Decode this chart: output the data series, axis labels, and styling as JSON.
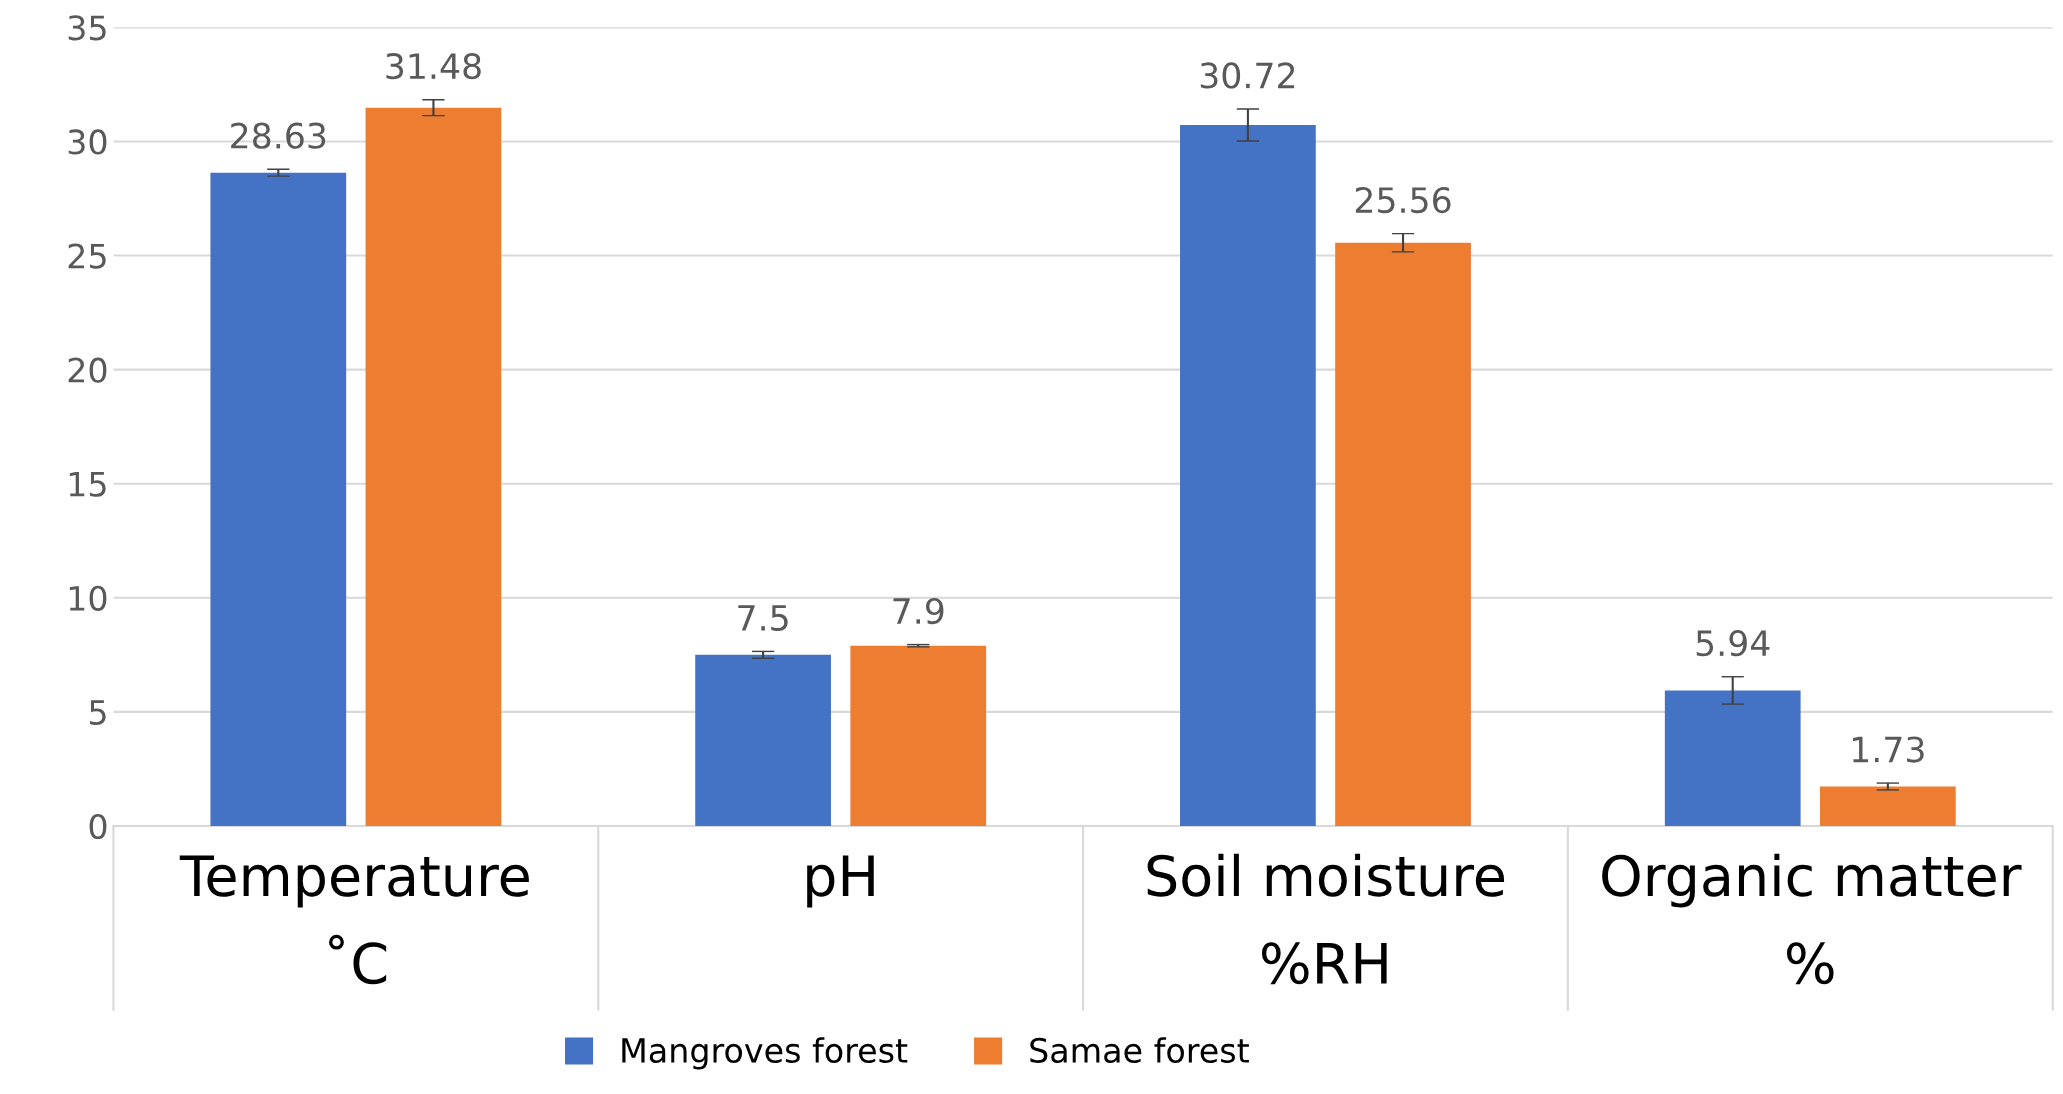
{
  "chart_data": {
    "type": "bar",
    "categories": [
      "Temperature\n˚C",
      "pH",
      "Soil moisture\n%RH",
      "Organic matter\n%"
    ],
    "series": [
      {
        "name": "Mangroves forest",
        "color": "#4472c4",
        "values": [
          28.63,
          7.5,
          30.72,
          5.94
        ],
        "errors": [
          0.15,
          0.15,
          0.7,
          0.6
        ]
      },
      {
        "name": "Samae forest",
        "color": "#ed7d31",
        "values": [
          31.48,
          7.9,
          25.56,
          1.73
        ],
        "errors": [
          0.35,
          0.05,
          0.4,
          0.15
        ]
      }
    ],
    "ylim": [
      0,
      35
    ],
    "yticks": [
      0,
      5,
      10,
      15,
      20,
      25,
      30,
      35
    ],
    "grid": "y",
    "legend": "bottom",
    "data_labels": true
  }
}
